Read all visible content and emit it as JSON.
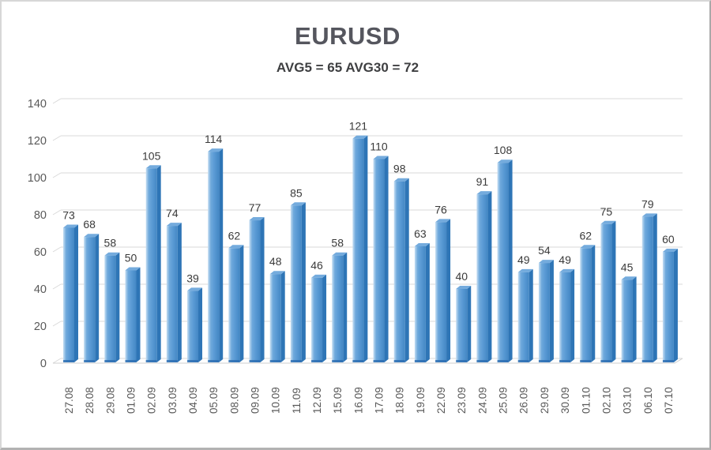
{
  "frame": {
    "background": "#ffffff",
    "border_color": "#c9c9c9"
  },
  "chart_data": {
    "type": "bar",
    "title": "EURUSD",
    "subtitle": "AVG5 = 65 AVG30 = 72",
    "categories": [
      "27.08",
      "28.08",
      "29.08",
      "01.09",
      "02.09",
      "03.09",
      "04.09",
      "05.09",
      "08.09",
      "09.09",
      "10.09",
      "11.09",
      "12.09",
      "15.09",
      "16.09",
      "17.09",
      "18.09",
      "19.09",
      "22.09",
      "23.09",
      "24.09",
      "25.09",
      "26.09",
      "29.09",
      "30.09",
      "01.10",
      "02.10",
      "03.10",
      "06.10",
      "07.10"
    ],
    "values": [
      73,
      68,
      58,
      50,
      105,
      74,
      39,
      114,
      62,
      77,
      48,
      85,
      46,
      58,
      121,
      110,
      98,
      63,
      76,
      40,
      91,
      108,
      49,
      54,
      49,
      62,
      75,
      45,
      79,
      60
    ],
    "xlabel": "",
    "ylabel": "",
    "ylim": [
      0,
      140
    ],
    "yticks": [
      0,
      20,
      40,
      60,
      80,
      100,
      120,
      140
    ],
    "grid": true,
    "legend": "none",
    "effect": "3d-column",
    "style": {
      "bar_front_color": "#5b9bd5",
      "bar_highlight_color": "#c3dcf2",
      "bar_side_color": "#2e75b6",
      "bar_top_color": "#74abdd",
      "bar_base_color": "#2b6cb0",
      "gridline_color": "#d9d9d9",
      "floor_edge_color": "#cfcfcf",
      "value_label_color": "#3a3a3a",
      "axis_tick_color": "#595959",
      "title_color": "#55565e",
      "subtitle_color": "#3e3f41"
    }
  }
}
